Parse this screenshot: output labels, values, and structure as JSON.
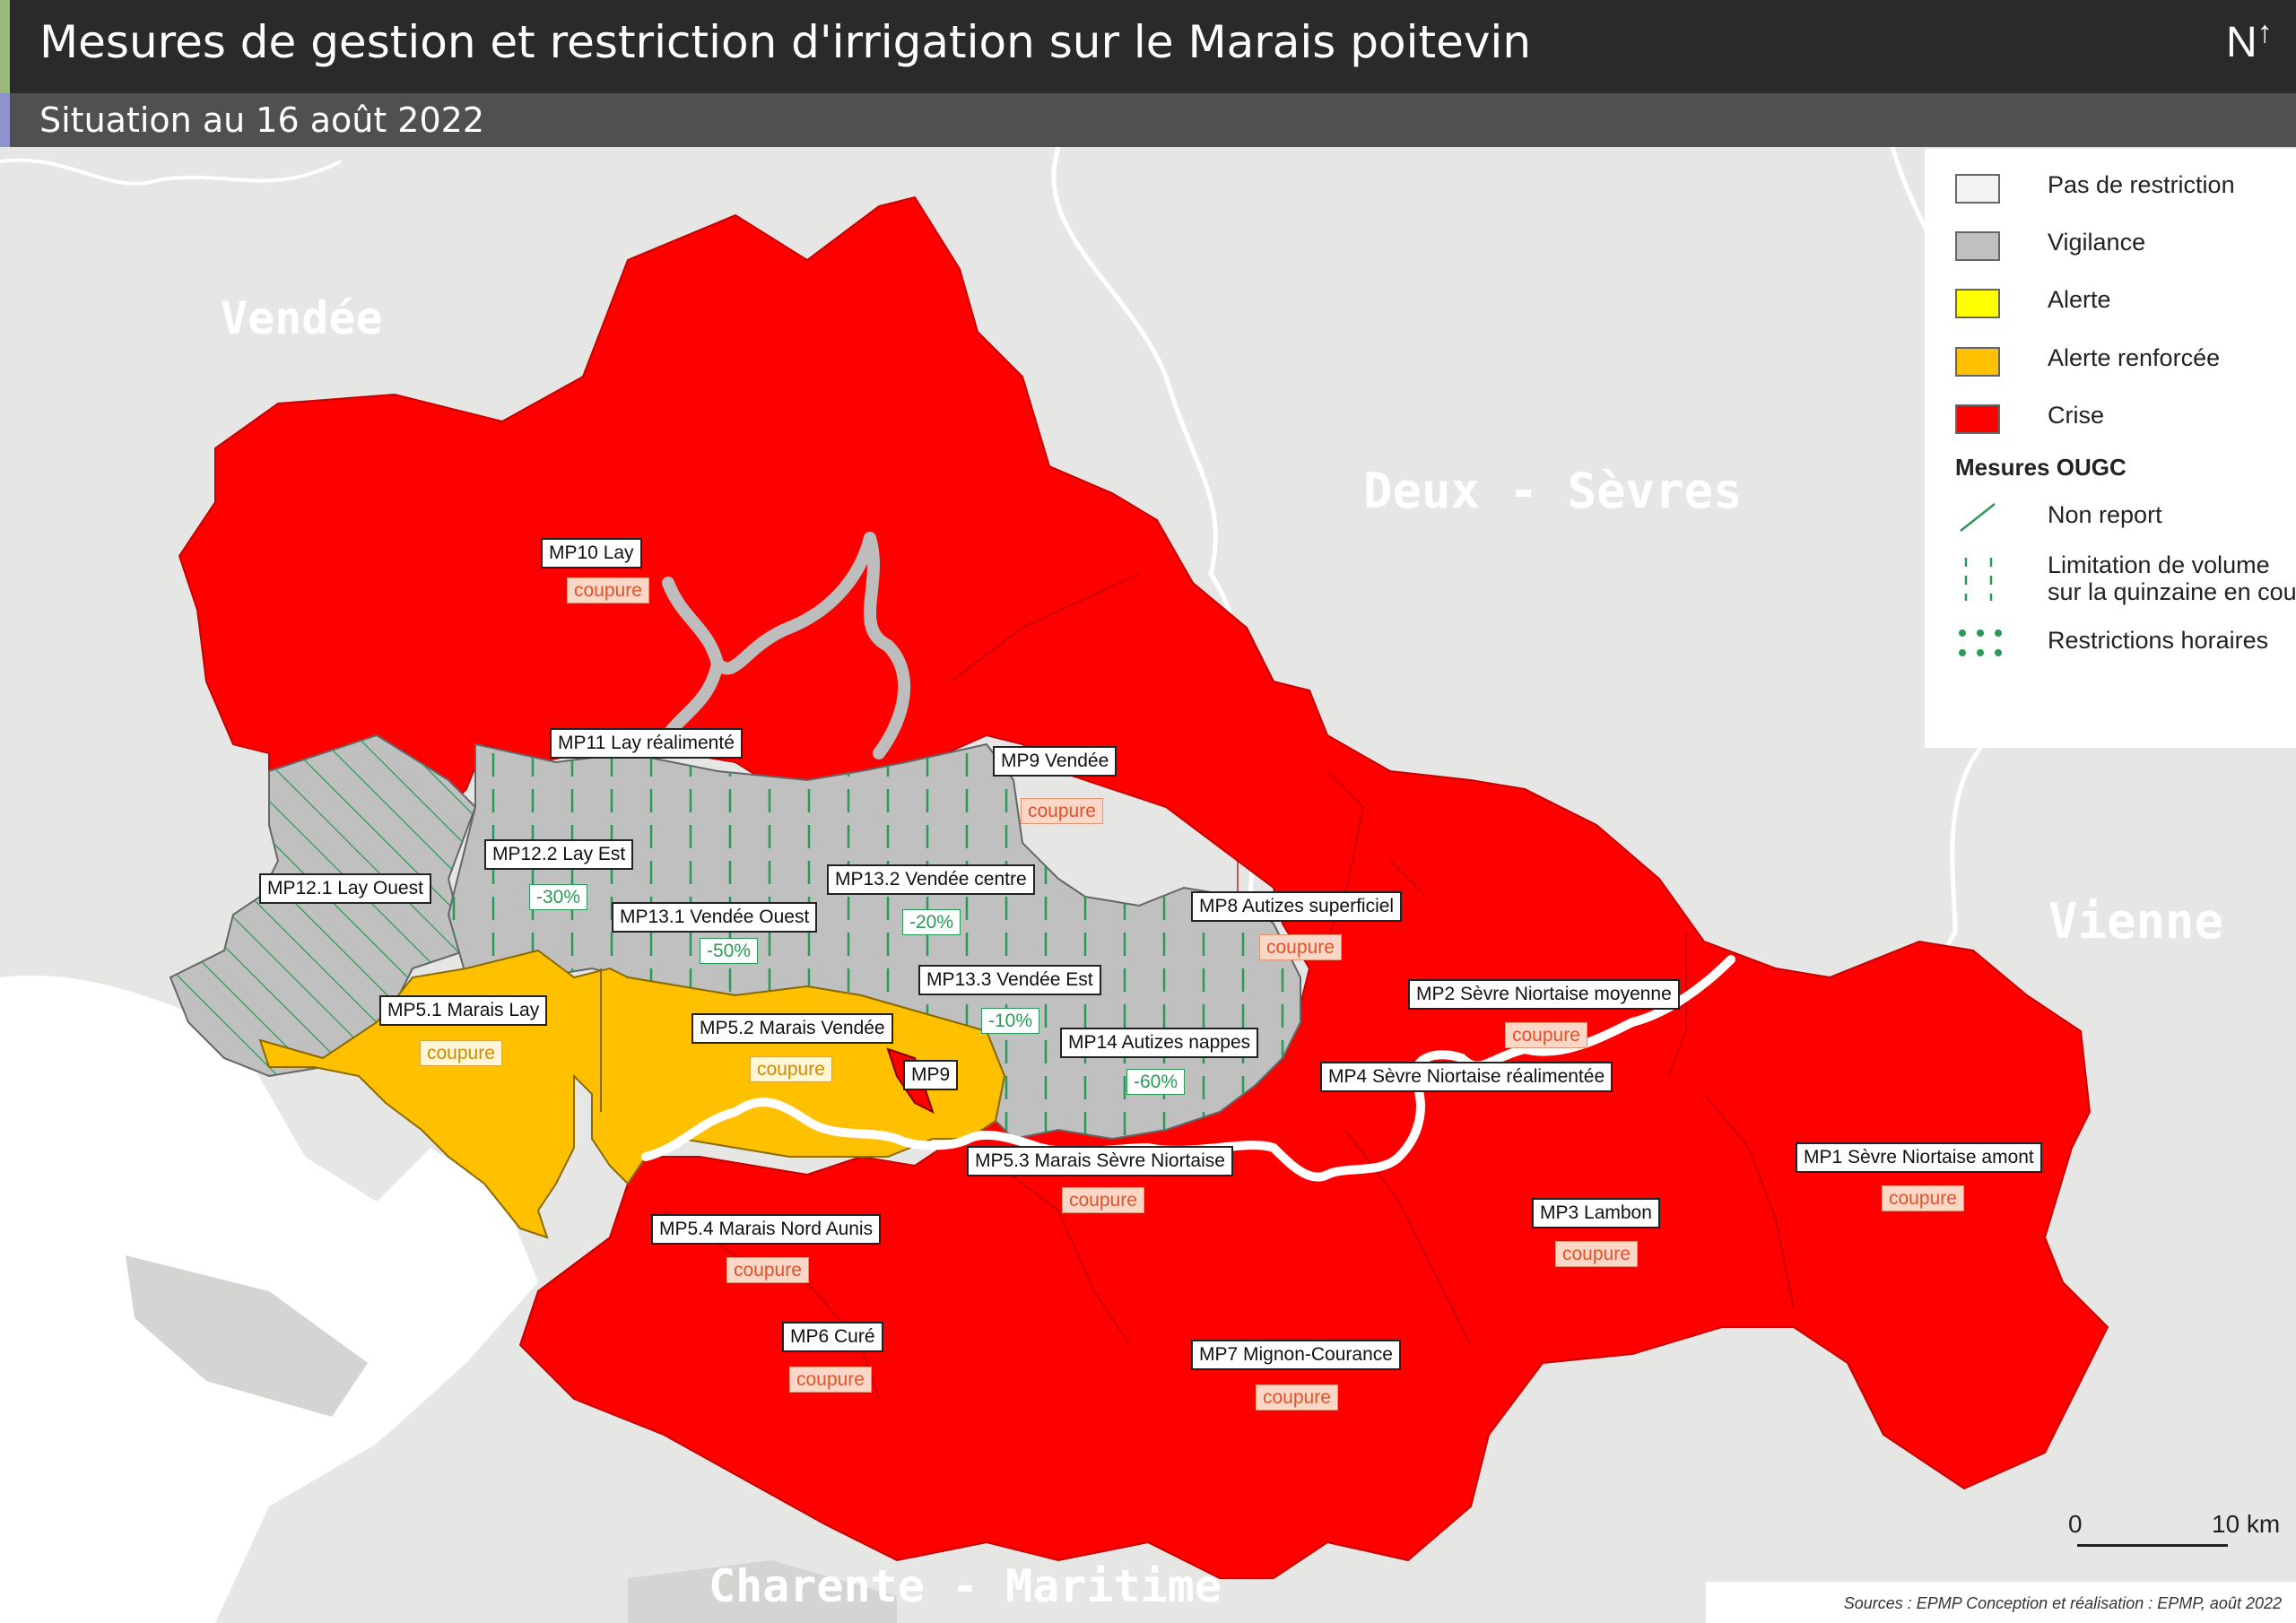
{
  "title": "Mesures de gestion et restriction d'irrigation sur le Marais poitevin",
  "subtitle": "Situation au 16 août 2022",
  "north_label": "N",
  "regions": {
    "vendee": "Vendée",
    "deux_sevres": "Deux - Sèvres",
    "vienne": "Vienne",
    "charente_maritime": "Charente - Maritime"
  },
  "colors": {
    "pas_de_restriction": "#f2f2f2",
    "vigilance": "#c0c0c0",
    "alerte": "#ffff00",
    "alerte_renforcee": "#ffc000",
    "crise": "#ff0000",
    "ougc_green": "#2a9a55"
  },
  "legend": {
    "items": [
      {
        "label": "Pas de restriction",
        "color": "#f2f2f2"
      },
      {
        "label": "Vigilance",
        "color": "#c0c0c0"
      },
      {
        "label": "Alerte",
        "color": "#ffff00"
      },
      {
        "label": "Alerte renforcée",
        "color": "#ffc000"
      },
      {
        "label": "Crise",
        "color": "#ff0000"
      }
    ],
    "ougc_heading": "Mesures OUGC",
    "ougc_items": [
      {
        "label": "Non report",
        "icon": "diagonal-hatch-icon"
      },
      {
        "label_line1": "Limitation de volume",
        "label_line2": "sur la quinzaine en cours",
        "icon": "vertical-dash-icon"
      },
      {
        "label": "Restrictions horaires",
        "icon": "dots-icon"
      }
    ]
  },
  "zones": [
    {
      "id": "MP10",
      "label": "MP10 Lay",
      "measure": "coupure",
      "status": "Crise"
    },
    {
      "id": "MP11",
      "label": "MP11 Lay réalimenté",
      "status": "Vigilance"
    },
    {
      "id": "MP9V",
      "label": "MP9 Vendée",
      "measure": "coupure",
      "status": "Crise"
    },
    {
      "id": "MP12_2",
      "label": "MP12.2 Lay Est",
      "measure": "-30%",
      "status": "Vigilance"
    },
    {
      "id": "MP12_1",
      "label": "MP12.1 Lay Ouest",
      "status": "Vigilance"
    },
    {
      "id": "MP13_2",
      "label": "MP13.2 Vendée centre",
      "measure": "-20%",
      "status": "Vigilance"
    },
    {
      "id": "MP13_1",
      "label": "MP13.1 Vendée Ouest",
      "measure": "-50%",
      "status": "Vigilance"
    },
    {
      "id": "MP8",
      "label": "MP8 Autizes superficiel",
      "measure": "coupure",
      "status": "Crise"
    },
    {
      "id": "MP13_3",
      "label": "MP13.3 Vendée Est",
      "measure": "-10%",
      "status": "Vigilance"
    },
    {
      "id": "MP5_1",
      "label": "MP5.1 Marais Lay",
      "measure": "coupure",
      "status": "Alerte renforcée"
    },
    {
      "id": "MP5_2",
      "label": "MP5.2 Marais Vendée",
      "measure": "coupure",
      "status": "Alerte renforcée"
    },
    {
      "id": "MP14",
      "label": "MP14 Autizes nappes",
      "measure": "-60%",
      "status": "Vigilance"
    },
    {
      "id": "MP9",
      "label": "MP9",
      "status": "Crise"
    },
    {
      "id": "MP2",
      "label": "MP2 Sèvre Niortaise moyenne",
      "measure": "coupure",
      "status": "Crise"
    },
    {
      "id": "MP4",
      "label": "MP4 Sèvre Niortaise réalimentée",
      "status": "Crise"
    },
    {
      "id": "MP5_3",
      "label": "MP5.3 Marais Sèvre Niortaise",
      "measure": "coupure",
      "status": "Crise"
    },
    {
      "id": "MP1",
      "label": "MP1 Sèvre Niortaise amont",
      "measure": "coupure",
      "status": "Crise"
    },
    {
      "id": "MP3",
      "label": "MP3 Lambon",
      "measure": "coupure",
      "status": "Crise"
    },
    {
      "id": "MP5_4",
      "label": "MP5.4 Marais Nord Aunis",
      "measure": "coupure",
      "status": "Crise"
    },
    {
      "id": "MP6",
      "label": "MP6 Curé",
      "measure": "coupure",
      "status": "Crise"
    },
    {
      "id": "MP7",
      "label": "MP7 Mignon-Courance",
      "measure": "coupure",
      "status": "Crise"
    }
  ],
  "scale": {
    "start": "0",
    "end": "10 km"
  },
  "sources": "Sources : EPMP Conception et réalisation : EPMP, août 2022"
}
